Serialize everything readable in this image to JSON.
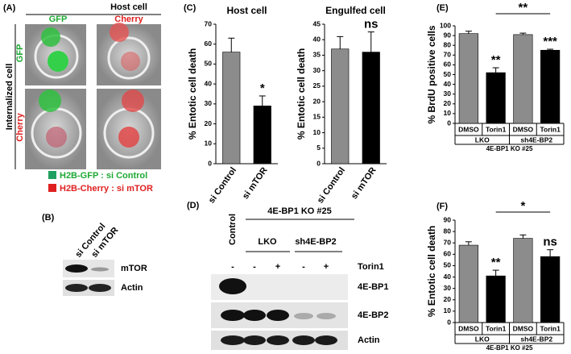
{
  "panel_a": {
    "label": "(A)",
    "title": "Host cell",
    "columns": [
      "GFP",
      "Cherry"
    ],
    "row_title": "Internalized cell",
    "rows": [
      "GFP",
      "Cherry"
    ],
    "legend": [
      "H2B-GFP : si Control",
      "H2B-Cherry : si mTOR"
    ]
  },
  "panel_b": {
    "label": "(B)",
    "lanes": [
      "si Control",
      "si mTOR"
    ],
    "blots": [
      "mTOR",
      "Actin"
    ]
  },
  "panel_d": {
    "label": "(D)",
    "group_title": "4E-BP1 KO #25",
    "control": "Control",
    "groups": [
      "LKO",
      "sh4E-BP2"
    ],
    "treatment": "Torin1",
    "lanes": [
      "-",
      "-",
      "+",
      "-",
      "+"
    ],
    "blots": [
      "4E-BP1",
      "4E-BP2",
      "Actin"
    ]
  },
  "chart_data": [
    {
      "type": "bar",
      "panel_label": "(C)",
      "title": "Host cell",
      "y_label": "% Entotic cell death",
      "categories": [
        "si Control",
        "si mTOR"
      ],
      "values": [
        56,
        29
      ],
      "errors": [
        7,
        5
      ],
      "colors": [
        "#8c8c8c",
        "#000000"
      ],
      "significance": [
        null,
        "*"
      ],
      "ylim": [
        0,
        70
      ],
      "yticks": [
        0,
        10,
        20,
        30,
        40,
        50,
        60,
        70
      ],
      "grid": false
    },
    {
      "type": "bar",
      "title": "Engulfed cell",
      "y_label": "% Entotic cell death",
      "categories": [
        "si Control",
        "si mTOR"
      ],
      "values": [
        37,
        36
      ],
      "errors": [
        4,
        6.5
      ],
      "colors": [
        "#8c8c8c",
        "#000000"
      ],
      "significance": [
        null,
        "ns"
      ],
      "ylim": [
        0,
        45
      ],
      "yticks": [
        0,
        5,
        10,
        15,
        20,
        25,
        30,
        35,
        40,
        45
      ],
      "grid": false
    },
    {
      "type": "bar",
      "panel_label": "(E)",
      "y_label": "% BrdU positive cells",
      "categories": [
        "DMSO",
        "Torin1",
        "DMSO",
        "Torin1"
      ],
      "values": [
        92,
        52,
        91,
        75
      ],
      "errors": [
        2.5,
        5,
        1.5,
        1
      ],
      "colors": [
        "#8c8c8c",
        "#000000",
        "#8c8c8c",
        "#000000"
      ],
      "significance": [
        null,
        "**",
        null,
        "***"
      ],
      "bracket_label": "**",
      "groups": [
        "LKO",
        "sh4E-BP2"
      ],
      "group_title": "4E-BP1 KO #25",
      "ylim": [
        0,
        100
      ],
      "yticks": [
        0,
        10,
        20,
        30,
        40,
        50,
        60,
        70,
        80,
        90,
        100
      ],
      "grid": false
    },
    {
      "type": "bar",
      "panel_label": "(F)",
      "y_label": "% Entotic cell death",
      "categories": [
        "DMSO",
        "Torin1",
        "DMSO",
        "Torin1"
      ],
      "values": [
        68,
        41,
        74,
        58
      ],
      "errors": [
        3,
        5,
        3,
        6
      ],
      "colors": [
        "#8c8c8c",
        "#000000",
        "#8c8c8c",
        "#000000"
      ],
      "significance": [
        null,
        "**",
        null,
        "ns"
      ],
      "bracket_label": "*",
      "groups": [
        "LKO",
        "sh4E-BP2"
      ],
      "group_title": "4E-BP1 KO #25",
      "ylim": [
        0,
        90
      ],
      "yticks": [
        0,
        10,
        20,
        30,
        40,
        50,
        60,
        70,
        80,
        90
      ],
      "grid": false
    }
  ]
}
